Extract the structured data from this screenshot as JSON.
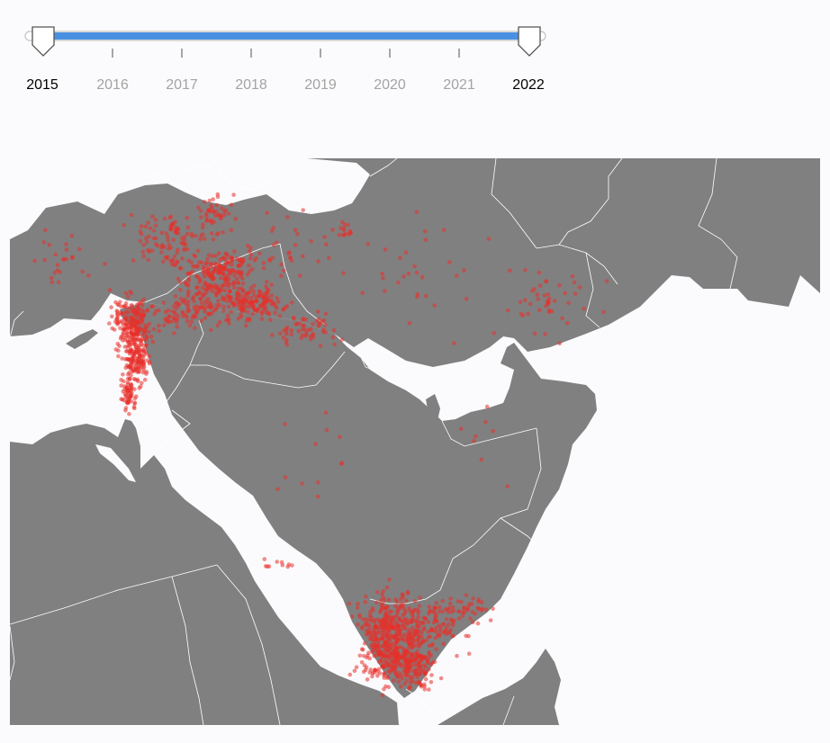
{
  "slider": {
    "range_start": "2015",
    "range_end": "2022",
    "ticks": [
      "2015",
      "2016",
      "2017",
      "2018",
      "2019",
      "2020",
      "2021",
      "2022"
    ],
    "track_color": "#4a90e2"
  },
  "map": {
    "land_color": "#808080",
    "border_color": "#ffffff",
    "point_color": "#e8302a"
  }
}
